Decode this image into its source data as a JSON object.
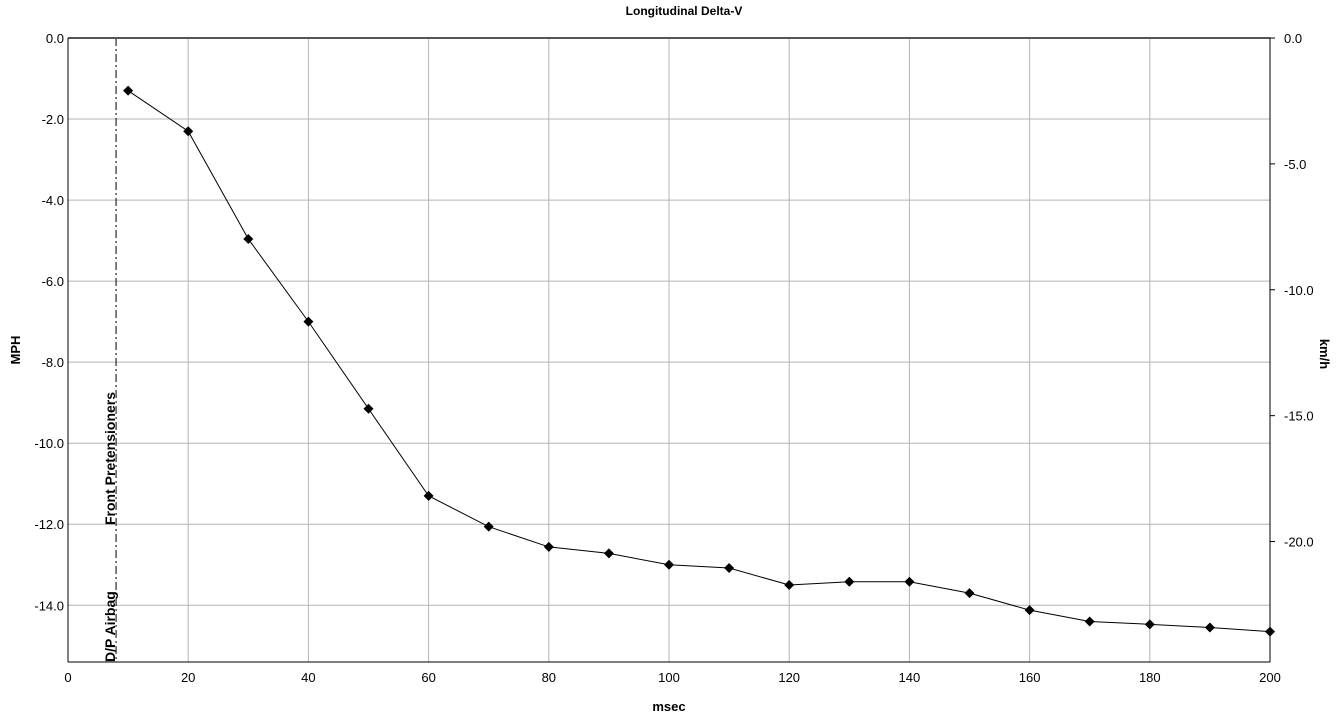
{
  "chart_data": {
    "type": "line",
    "title": "Longitudinal Delta-V",
    "xlabel": "msec",
    "ylabel": "MPH",
    "y2label": "km/h",
    "xlim": [
      0,
      200
    ],
    "ylim": [
      -15.4,
      0
    ],
    "y2lim": [
      -24.784,
      0
    ],
    "x_ticks": [
      0,
      20,
      40,
      60,
      80,
      100,
      120,
      140,
      160,
      180,
      200
    ],
    "x_tick_labels": [
      "0",
      "20",
      "40",
      "60",
      "80",
      "100",
      "120",
      "140",
      "160",
      "180",
      "200"
    ],
    "y_ticks": [
      0,
      -2,
      -4,
      -6,
      -8,
      -10,
      -12,
      -14
    ],
    "y_tick_labels": [
      "0.0",
      "-2.0",
      "-4.0",
      "-6.0",
      "-8.0",
      "-10.0",
      "-12.0",
      "-14.0"
    ],
    "y2_ticks": [
      0,
      -5,
      -10,
      -15,
      -20
    ],
    "y2_tick_labels": [
      "0.0",
      "-5.0",
      "-10.0",
      "-15.0",
      "-20.0"
    ],
    "grid": true,
    "legend": "none",
    "series": [
      {
        "x": [
          10,
          20,
          30,
          40,
          50,
          60,
          70,
          80,
          90,
          100,
          110,
          120,
          130,
          140,
          150,
          160,
          170,
          180,
          190,
          200
        ],
        "y": [
          -1.3,
          -2.3,
          -4.96,
          -7.0,
          -9.15,
          -11.3,
          -12.06,
          -12.56,
          -12.72,
          -13.0,
          -13.08,
          -13.5,
          -13.42,
          -13.42,
          -13.7,
          -14.12,
          -14.4,
          -14.47,
          -14.55,
          -14.65
        ],
        "color": "#000000",
        "marker": "diamond"
      }
    ],
    "events": [
      {
        "x": 8,
        "label": "Front Pretensioners"
      },
      {
        "x": 8,
        "label": "D/P Airbag"
      }
    ]
  }
}
